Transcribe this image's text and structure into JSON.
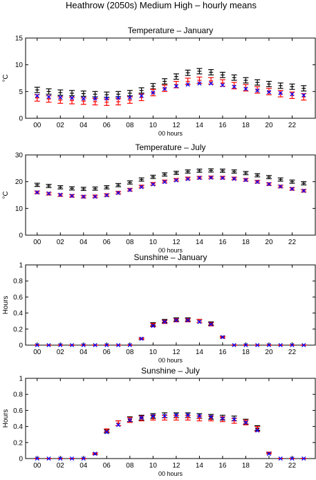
{
  "figure": {
    "title": "Heathrow (2050s) Medium High – hourly means"
  },
  "colors": {
    "series_black": "#000000",
    "series_red": "#ff0000",
    "series_blue": "#0000ff"
  },
  "chart_data": [
    {
      "type": "scatter",
      "title": "Temperature – January",
      "xlabel": "00 hours",
      "ylabel": "°C",
      "xlim": [
        -1,
        24
      ],
      "ylim": [
        0,
        15
      ],
      "xticks": [
        "00",
        "02",
        "04",
        "06",
        "08",
        "10",
        "12",
        "14",
        "16",
        "18",
        "20",
        "22"
      ],
      "yticks": [
        "0",
        "5",
        "10",
        "15"
      ],
      "grid": false,
      "x": [
        0,
        1,
        2,
        3,
        4,
        5,
        6,
        7,
        8,
        9,
        10,
        11,
        12,
        13,
        14,
        15,
        16,
        17,
        18,
        19,
        20,
        21,
        22,
        23
      ],
      "series": [
        {
          "color": "#000000",
          "marker": "errorbar",
          "values": [
            5.3,
            5.0,
            4.8,
            4.7,
            4.6,
            4.5,
            4.4,
            4.5,
            4.7,
            5.2,
            6.0,
            6.9,
            7.8,
            8.5,
            8.8,
            8.6,
            8.1,
            7.6,
            7.1,
            6.7,
            6.4,
            6.1,
            5.9,
            5.6
          ],
          "err": [
            0.5,
            0.5,
            0.5,
            0.5,
            0.5,
            0.5,
            0.5,
            0.5,
            0.5,
            0.5,
            0.5,
            0.5,
            0.5,
            0.5,
            0.5,
            0.5,
            0.5,
            0.5,
            0.5,
            0.5,
            0.5,
            0.5,
            0.5,
            0.5
          ]
        },
        {
          "color": "#ff0000",
          "marker": "errorbar",
          "values": [
            3.8,
            3.6,
            3.4,
            3.3,
            3.2,
            3.1,
            3.0,
            3.1,
            3.4,
            3.9,
            4.8,
            5.6,
            6.3,
            6.9,
            7.1,
            7.0,
            6.6,
            6.1,
            5.7,
            5.3,
            5.0,
            4.6,
            4.3,
            4.0
          ],
          "err": [
            0.6,
            0.6,
            0.6,
            0.6,
            0.6,
            0.6,
            0.6,
            0.6,
            0.6,
            0.6,
            0.6,
            0.6,
            0.6,
            0.6,
            0.6,
            0.6,
            0.6,
            0.6,
            0.6,
            0.6,
            0.6,
            0.6,
            0.6,
            0.6
          ]
        },
        {
          "color": "#0000ff",
          "marker": "x",
          "values": [
            4.2,
            4.0,
            3.9,
            3.8,
            3.7,
            3.7,
            3.7,
            3.8,
            3.9,
            4.2,
            4.8,
            5.5,
            6.0,
            6.3,
            6.5,
            6.5,
            6.2,
            5.9,
            5.5,
            5.2,
            4.9,
            4.7,
            4.5,
            4.3
          ]
        }
      ]
    },
    {
      "type": "scatter",
      "title": "Temperature – July",
      "xlabel": "00 hours",
      "ylabel": "°C",
      "xlim": [
        -1,
        24
      ],
      "ylim": [
        0,
        30
      ],
      "xticks": [
        "00",
        "02",
        "04",
        "06",
        "08",
        "10",
        "12",
        "14",
        "16",
        "18",
        "20",
        "22"
      ],
      "yticks": [
        "0",
        "10",
        "20",
        "30"
      ],
      "grid": false,
      "x": [
        0,
        1,
        2,
        3,
        4,
        5,
        6,
        7,
        8,
        9,
        10,
        11,
        12,
        13,
        14,
        15,
        16,
        17,
        18,
        19,
        20,
        21,
        22,
        23
      ],
      "series": [
        {
          "color": "#000000",
          "marker": "errorbar",
          "values": [
            18.8,
            18.4,
            17.9,
            17.5,
            17.3,
            17.4,
            17.9,
            18.7,
            19.7,
            20.8,
            21.8,
            22.7,
            23.3,
            23.8,
            24.1,
            24.2,
            24.1,
            23.8,
            23.2,
            22.4,
            21.7,
            20.8,
            20.0,
            19.4
          ],
          "err": [
            0.6,
            0.6,
            0.6,
            0.6,
            0.6,
            0.6,
            0.6,
            0.6,
            0.6,
            0.6,
            0.6,
            0.6,
            0.6,
            0.6,
            0.6,
            0.6,
            0.6,
            0.6,
            0.6,
            0.6,
            0.6,
            0.6,
            0.6,
            0.6
          ]
        },
        {
          "color": "#ff0000",
          "marker": "errorbar",
          "values": [
            16.0,
            15.5,
            15.0,
            14.7,
            14.4,
            14.5,
            15.0,
            15.9,
            17.0,
            18.2,
            19.2,
            20.1,
            20.7,
            21.2,
            21.5,
            21.6,
            21.5,
            21.2,
            20.7,
            20.0,
            19.1,
            18.2,
            17.3,
            16.6
          ],
          "err": [
            0.5,
            0.5,
            0.5,
            0.5,
            0.5,
            0.5,
            0.5,
            0.5,
            0.5,
            0.5,
            0.5,
            0.5,
            0.5,
            0.5,
            0.5,
            0.5,
            0.5,
            0.5,
            0.5,
            0.5,
            0.5,
            0.5,
            0.5,
            0.5
          ]
        },
        {
          "color": "#0000ff",
          "marker": "x",
          "values": [
            16.0,
            15.6,
            15.1,
            14.7,
            14.4,
            14.4,
            14.9,
            15.8,
            16.9,
            18.0,
            19.0,
            19.9,
            20.5,
            21.0,
            21.4,
            21.5,
            21.4,
            21.1,
            20.6,
            19.9,
            19.1,
            18.2,
            17.3,
            16.6
          ]
        }
      ]
    },
    {
      "type": "scatter",
      "title": "Sunshine – January",
      "xlabel": "00 hours",
      "ylabel": "Hours",
      "xlim": [
        -1,
        24
      ],
      "ylim": [
        0,
        1
      ],
      "xticks": [
        "00",
        "02",
        "04",
        "06",
        "08",
        "10",
        "12",
        "14",
        "16",
        "18",
        "20",
        "22"
      ],
      "yticks": [
        "0",
        "0.2",
        "0.4",
        "0.6",
        "0.8",
        "1"
      ],
      "grid": false,
      "x": [
        0,
        1,
        2,
        3,
        4,
        5,
        6,
        7,
        8,
        9,
        10,
        11,
        12,
        13,
        14,
        15,
        16,
        17,
        18,
        19,
        20,
        21,
        22,
        23
      ],
      "series": [
        {
          "color": "#000000",
          "marker": "errorbar",
          "values": [
            0,
            0,
            0,
            0,
            0,
            0,
            0,
            0,
            0,
            0.08,
            0.26,
            0.3,
            0.32,
            0.32,
            0.3,
            0.27,
            0.1,
            0,
            0,
            0,
            0,
            0,
            0,
            0
          ],
          "err": [
            0,
            0,
            0,
            0,
            0,
            0,
            0,
            0,
            0,
            0.01,
            0.02,
            0.02,
            0.02,
            0.02,
            0.02,
            0.02,
            0.01,
            0,
            0,
            0,
            0,
            0,
            0,
            0
          ]
        },
        {
          "color": "#ff0000",
          "marker": "errorbar",
          "values": [
            0,
            0,
            0,
            0,
            0,
            0,
            0,
            0,
            0,
            0.08,
            0.25,
            0.29,
            0.31,
            0.31,
            0.3,
            0.26,
            0.1,
            0,
            0,
            0,
            0,
            0,
            0,
            0
          ],
          "err": [
            0,
            0,
            0,
            0,
            0,
            0,
            0,
            0,
            0,
            0.01,
            0.02,
            0.02,
            0.02,
            0.02,
            0.02,
            0.02,
            0.01,
            0,
            0,
            0,
            0,
            0,
            0,
            0
          ]
        },
        {
          "color": "#0000ff",
          "marker": "x",
          "values": [
            0,
            0,
            0,
            0,
            0,
            0,
            0,
            0,
            0,
            0.08,
            0.24,
            0.29,
            0.31,
            0.31,
            0.29,
            0.26,
            0.1,
            0,
            0,
            0,
            0,
            0,
            0,
            0
          ]
        }
      ]
    },
    {
      "type": "scatter",
      "title": "Sunshine – July",
      "xlabel": "00 hours",
      "ylabel": "Hours",
      "xlim": [
        -1,
        24
      ],
      "ylim": [
        0,
        1
      ],
      "xticks": [
        "00",
        "02",
        "04",
        "06",
        "08",
        "10",
        "12",
        "14",
        "16",
        "18",
        "20",
        "22"
      ],
      "yticks": [
        "0",
        "0.2",
        "0.4",
        "0.6",
        "0.8",
        "1"
      ],
      "grid": false,
      "x": [
        0,
        1,
        2,
        3,
        4,
        5,
        6,
        7,
        8,
        9,
        10,
        11,
        12,
        13,
        14,
        15,
        16,
        17,
        18,
        19,
        20,
        21,
        22,
        23
      ],
      "series": [
        {
          "color": "#000000",
          "marker": "errorbar",
          "values": [
            0,
            0,
            0,
            0,
            0,
            0.06,
            0.34,
            0.44,
            0.49,
            0.51,
            0.53,
            0.54,
            0.54,
            0.54,
            0.53,
            0.52,
            0.51,
            0.5,
            0.46,
            0.38,
            0.07,
            0,
            0,
            0
          ],
          "err": [
            0,
            0,
            0,
            0,
            0,
            0.01,
            0.02,
            0.03,
            0.03,
            0.03,
            0.03,
            0.03,
            0.03,
            0.03,
            0.03,
            0.03,
            0.03,
            0.03,
            0.03,
            0.03,
            0.01,
            0,
            0,
            0
          ]
        },
        {
          "color": "#ff0000",
          "marker": "errorbar",
          "values": [
            0,
            0,
            0,
            0,
            0,
            0.06,
            0.35,
            0.44,
            0.48,
            0.5,
            0.51,
            0.51,
            0.51,
            0.51,
            0.5,
            0.5,
            0.49,
            0.47,
            0.45,
            0.37,
            0.07,
            0,
            0,
            0
          ],
          "err": [
            0,
            0,
            0,
            0,
            0,
            0.01,
            0.02,
            0.03,
            0.03,
            0.03,
            0.03,
            0.03,
            0.03,
            0.03,
            0.03,
            0.03,
            0.03,
            0.03,
            0.03,
            0.03,
            0.01,
            0,
            0,
            0
          ]
        },
        {
          "color": "#0000ff",
          "marker": "x",
          "values": [
            0,
            0,
            0,
            0,
            0,
            0.06,
            0.33,
            0.42,
            0.48,
            0.51,
            0.53,
            0.53,
            0.54,
            0.54,
            0.53,
            0.52,
            0.5,
            0.49,
            0.45,
            0.35,
            0.06,
            0,
            0,
            0
          ]
        }
      ]
    }
  ]
}
